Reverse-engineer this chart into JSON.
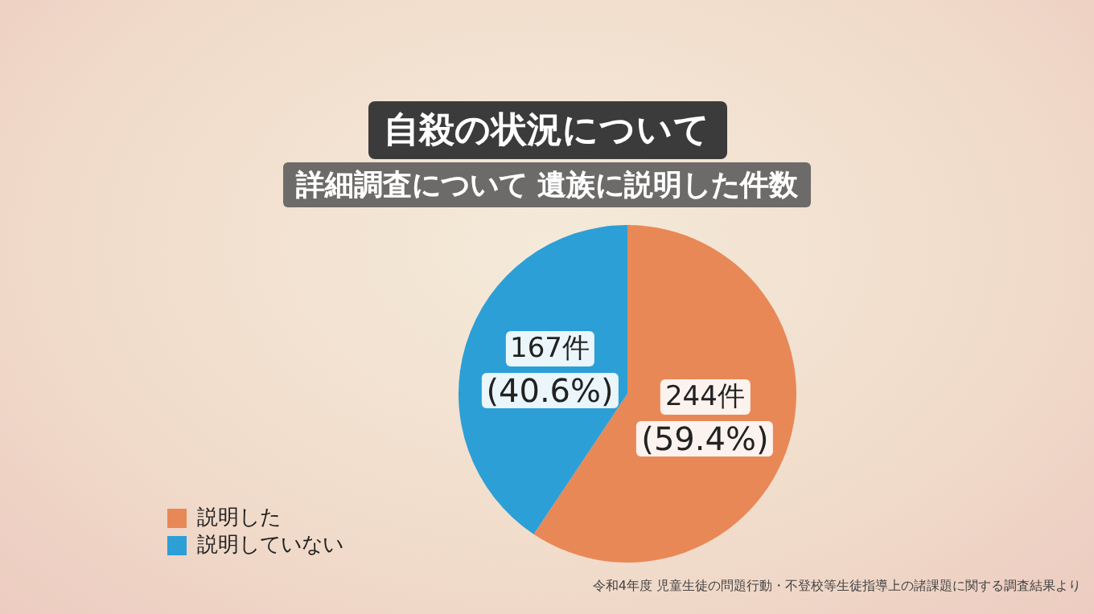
{
  "chart_data": {
    "type": "pie",
    "title": "自殺の状況について",
    "subtitle": "詳細調査について 遺族に説明した件数",
    "categories": [
      "説明した",
      "説明していない"
    ],
    "values": [
      244,
      167
    ],
    "colors": [
      "#e98857",
      "#2c9fd6"
    ],
    "value_labels": [
      "244件\n(59.4%)",
      "167件\n(40.6%)"
    ],
    "legend": "bottom left",
    "annotations": [
      "令和4年度 児童生徒の問題行動・不登校等生徒指導上の諸課題に関する調査結果より"
    ]
  }
}
